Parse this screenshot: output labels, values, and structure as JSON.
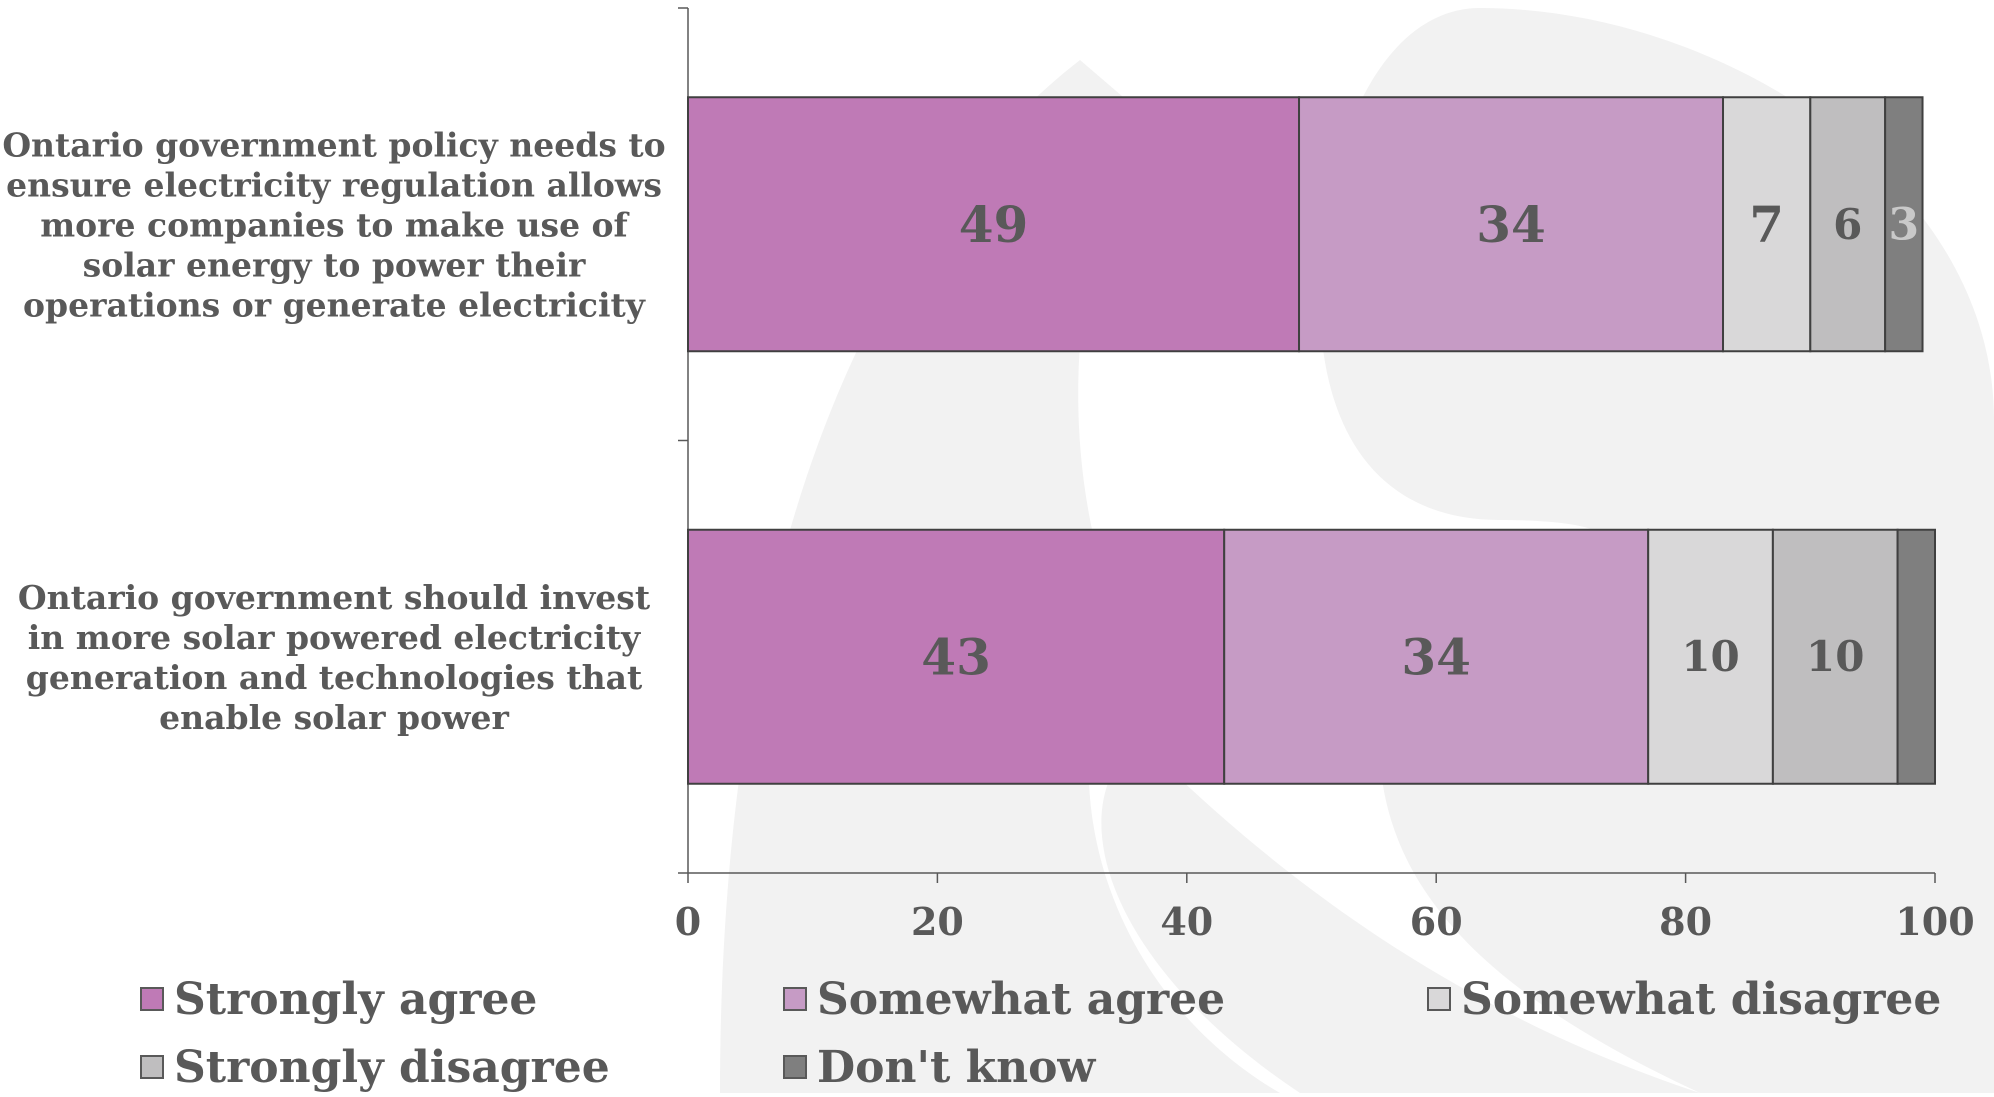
{
  "colors": {
    "background_graphic": "#f2f2f2",
    "axis": "#595959",
    "text": "#595959",
    "bar_border": "#404040"
  },
  "chart_data": {
    "type": "bar",
    "orientation": "horizontal",
    "stacked": true,
    "categories": [
      "Ontario government policy needs to ensure electricity regulation allows more companies to make use of solar energy to power their operations or generate electricity",
      "Ontario government should invest in more solar powered electricity generation and technologies that enable solar power"
    ],
    "category_lines": [
      [
        "Ontario government policy needs to",
        "ensure electricity regulation allows",
        "more companies to make use of",
        "solar energy to power their",
        "operations or generate electricity"
      ],
      [
        "Ontario government should invest",
        "in more solar powered electricity",
        "generation and technologies that",
        "enable solar power"
      ]
    ],
    "series": [
      {
        "name": "Strongly agree",
        "color": "#bf7ab6",
        "label_color": "#595959",
        "values": [
          49,
          43
        ],
        "labels": [
          "49",
          "43"
        ]
      },
      {
        "name": "Somewhat agree",
        "color": "#c69bc5",
        "label_color": "#595959",
        "values": [
          34,
          34
        ],
        "labels": [
          "34",
          "34"
        ]
      },
      {
        "name": "Somewhat disagree",
        "color": "#d9d8d9",
        "label_color": "#595959",
        "values": [
          7,
          10
        ],
        "labels": [
          "7",
          "10"
        ]
      },
      {
        "name": "Strongly disagree",
        "color": "#bfbebf",
        "label_color": "#595959",
        "values": [
          6,
          10
        ],
        "labels": [
          "6",
          "10"
        ]
      },
      {
        "name": "Don't know",
        "color": "#7f7f7f",
        "label_color": "#c9c9c9",
        "values": [
          3,
          3
        ],
        "labels": [
          "3",
          ""
        ]
      }
    ],
    "x_ticks": [
      "0",
      "20",
      "40",
      "60",
      "80",
      "100"
    ],
    "xlim": [
      0,
      100
    ],
    "grid": false,
    "legend_position": "bottom"
  }
}
